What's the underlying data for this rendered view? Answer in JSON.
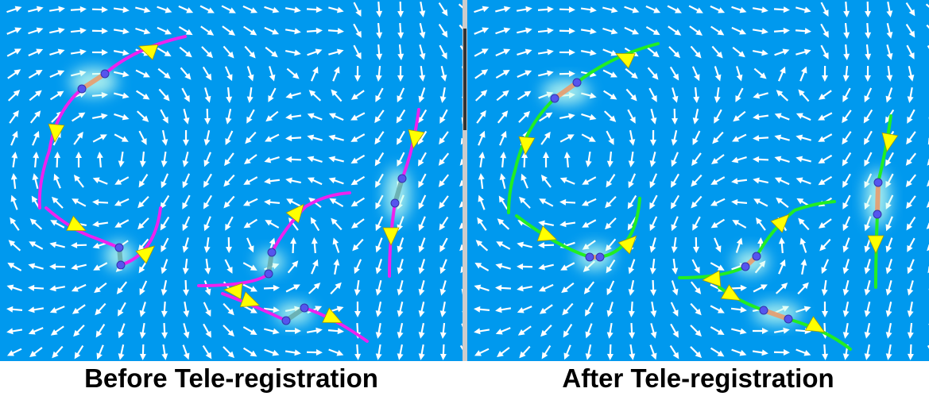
{
  "captions": {
    "before": "Before Tele-registration",
    "after": "After Tele-registration"
  },
  "colors": {
    "field_background": "#0099ee",
    "arrow": "#ffffff",
    "before_curve": "#ee22ee",
    "after_curve": "#22ee22",
    "direction_arrow": "#ffff00",
    "endpoint": "#5555ee",
    "glow": "#ccffee",
    "bridge": "#ee9966",
    "divider": "#cccccc",
    "divider_handle": "#333333"
  }
}
